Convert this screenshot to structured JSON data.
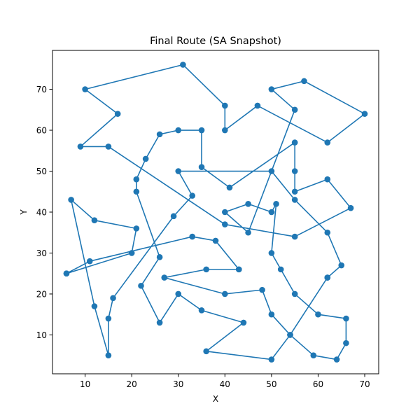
{
  "chart_data": {
    "type": "line",
    "title": "Final Route (SA Snapshot)",
    "xlabel": "X",
    "ylabel": "Y",
    "xlim": [
      3,
      73
    ],
    "ylim": [
      0.5,
      79.5
    ],
    "xticks": [
      10,
      20,
      30,
      40,
      50,
      60,
      70
    ],
    "yticks": [
      10,
      20,
      30,
      40,
      50,
      60,
      70
    ],
    "grid": false,
    "series": [
      {
        "name": "route",
        "color": "#1f77b4",
        "marker": "circle",
        "points": [
          [
            6,
            25
          ],
          [
            20,
            30
          ],
          [
            21,
            36
          ],
          [
            12,
            38
          ],
          [
            7,
            43
          ],
          [
            12,
            17
          ],
          [
            15,
            5
          ],
          [
            15,
            14
          ],
          [
            16,
            19
          ],
          [
            29,
            39
          ],
          [
            33,
            44
          ],
          [
            30,
            50
          ],
          [
            50,
            50
          ],
          [
            55,
            43
          ],
          [
            62,
            35
          ],
          [
            65,
            27
          ],
          [
            62,
            24
          ],
          [
            62,
            24
          ],
          [
            54,
            10
          ],
          [
            50,
            4
          ],
          [
            36,
            6
          ],
          [
            44,
            13
          ],
          [
            35,
            16
          ],
          [
            30,
            20
          ],
          [
            26,
            13
          ],
          [
            22,
            22
          ],
          [
            26,
            29
          ],
          [
            21,
            45
          ],
          [
            21,
            48
          ],
          [
            23,
            53
          ],
          [
            26,
            59
          ],
          [
            30,
            60
          ],
          [
            35,
            60
          ],
          [
            35,
            51
          ],
          [
            41,
            46
          ],
          [
            55,
            57
          ],
          [
            55,
            50
          ],
          [
            55,
            45
          ],
          [
            62,
            48
          ],
          [
            67,
            41
          ],
          [
            55,
            34
          ],
          [
            40,
            37
          ],
          [
            15,
            56
          ],
          [
            9,
            56
          ],
          [
            17,
            64
          ],
          [
            10,
            70
          ],
          [
            31,
            76
          ],
          [
            40,
            66
          ],
          [
            40,
            60
          ],
          [
            47,
            66
          ],
          [
            62,
            57
          ],
          [
            70,
            64
          ],
          [
            57,
            72
          ],
          [
            50,
            70
          ],
          [
            55,
            65
          ],
          [
            45,
            35
          ],
          [
            40,
            40
          ],
          [
            45,
            42
          ],
          [
            50,
            40
          ],
          [
            51,
            42
          ],
          [
            50,
            30
          ],
          [
            52,
            26
          ],
          [
            55,
            20
          ],
          [
            60,
            15
          ],
          [
            66,
            14
          ],
          [
            66,
            8
          ],
          [
            64,
            4
          ],
          [
            59,
            5
          ],
          [
            54,
            10
          ],
          [
            50,
            15
          ],
          [
            48,
            21
          ],
          [
            40,
            20
          ],
          [
            27,
            24
          ],
          [
            36,
            26
          ],
          [
            43,
            26
          ],
          [
            43,
            26
          ],
          [
            38,
            33
          ],
          [
            33,
            34
          ],
          [
            11,
            28
          ],
          [
            6,
            25
          ]
        ]
      }
    ]
  }
}
